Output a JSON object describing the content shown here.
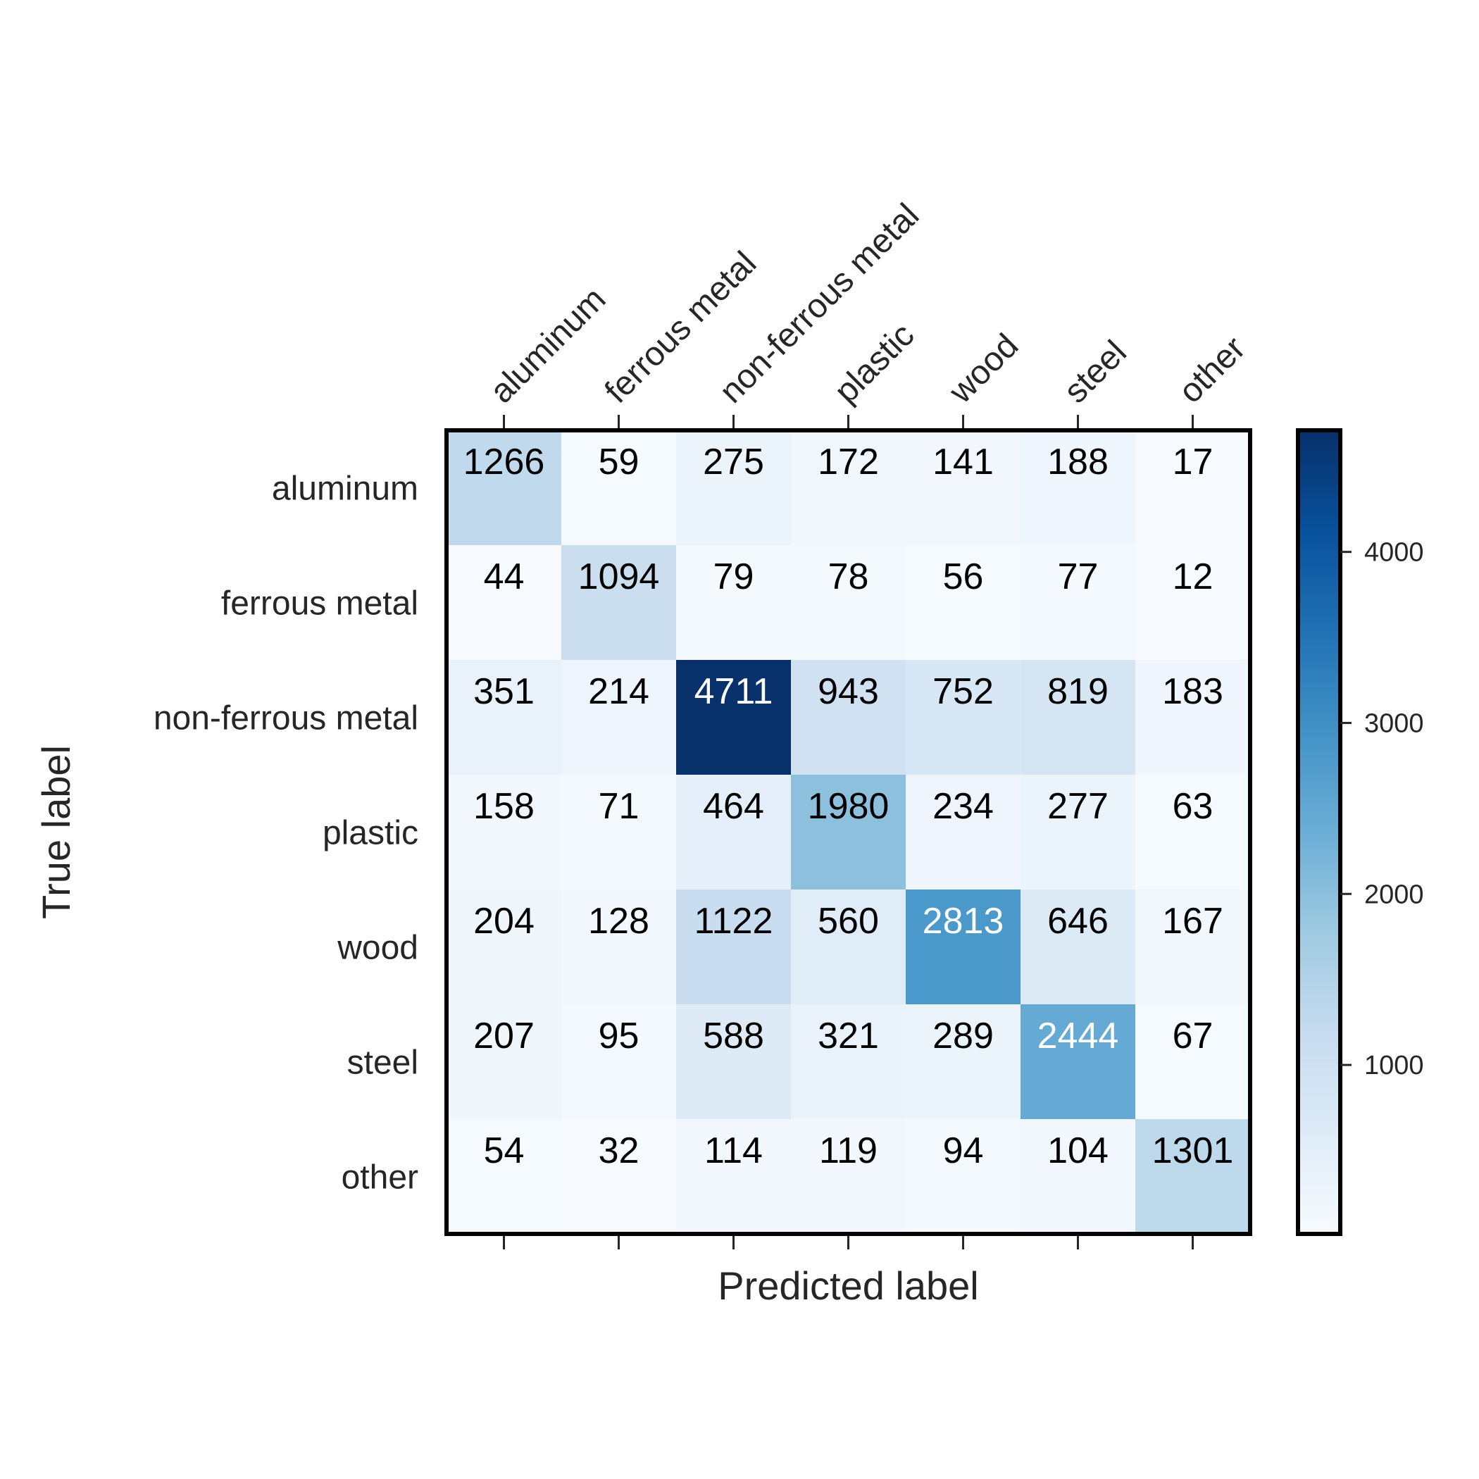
{
  "chart_data": {
    "type": "heatmap",
    "title": "",
    "xlabel": "Predicted label",
    "ylabel": "True label",
    "x_categories": [
      "aluminum",
      "ferrous metal",
      "non-ferrous metal",
      "plastic",
      "wood",
      "steel",
      "other"
    ],
    "y_categories": [
      "aluminum",
      "ferrous metal",
      "non-ferrous metal",
      "plastic",
      "wood",
      "steel",
      "other"
    ],
    "values": [
      [
        1266,
        59,
        275,
        172,
        141,
        188,
        17
      ],
      [
        44,
        1094,
        79,
        78,
        56,
        77,
        12
      ],
      [
        351,
        214,
        4711,
        943,
        752,
        819,
        183
      ],
      [
        158,
        71,
        464,
        1980,
        234,
        277,
        63
      ],
      [
        204,
        128,
        1122,
        560,
        2813,
        646,
        167
      ],
      [
        207,
        95,
        588,
        321,
        289,
        2444,
        67
      ],
      [
        54,
        32,
        114,
        119,
        94,
        104,
        1301
      ]
    ],
    "colormap": "Blues",
    "colormap_stops": [
      "#f7fbff",
      "#deebf7",
      "#c6dbef",
      "#9ecae1",
      "#6baed6",
      "#4292c6",
      "#2171b5",
      "#08519c",
      "#08306b"
    ],
    "color_range": [
      12,
      4711
    ],
    "colorbar_ticks": [
      1000,
      2000,
      3000,
      4000
    ],
    "x_tick_position": "top",
    "grid": false
  }
}
